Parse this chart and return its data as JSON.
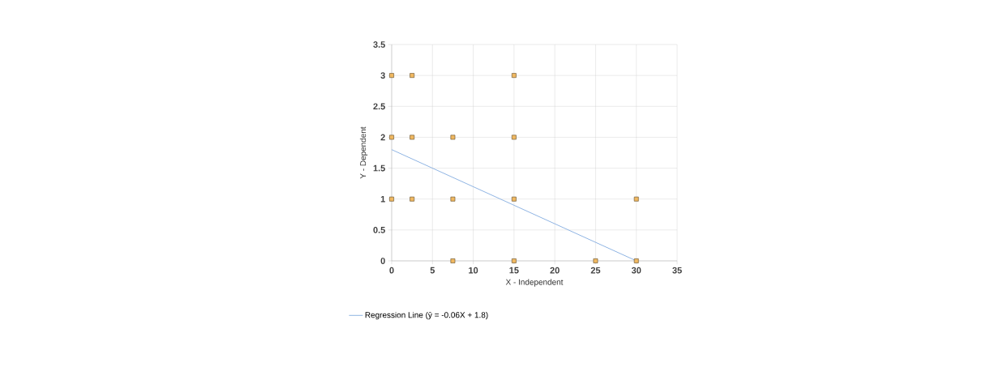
{
  "chart_data": {
    "type": "scatter",
    "xlabel": "X - Independent",
    "ylabel": "Y - Dependent",
    "xlim": [
      0,
      35
    ],
    "ylim": [
      0,
      3.5
    ],
    "xticks": [
      0,
      5,
      10,
      15,
      20,
      25,
      30,
      35
    ],
    "yticks": [
      0,
      0.5,
      1,
      1.5,
      2,
      2.5,
      3,
      3.5
    ],
    "grid": true,
    "legend": "bottom left",
    "series": [
      {
        "marker": "square",
        "color": "#f0b860",
        "x": [
          0,
          2.5,
          15,
          0,
          2.5,
          7.5,
          15,
          0,
          2.5,
          7.5,
          15,
          30,
          7.5,
          15,
          25,
          30
        ],
        "values": [
          3,
          3,
          3,
          2,
          2,
          2,
          2,
          1,
          1,
          1,
          1,
          1,
          0,
          0,
          0,
          0
        ]
      },
      {
        "type": "line",
        "marker": "none",
        "name": "Regression Line (ŷ = -0.06X + 1.8)",
        "color": "#8fb4e3",
        "x": [
          0,
          30
        ],
        "values": [
          1.8,
          0
        ]
      }
    ]
  }
}
